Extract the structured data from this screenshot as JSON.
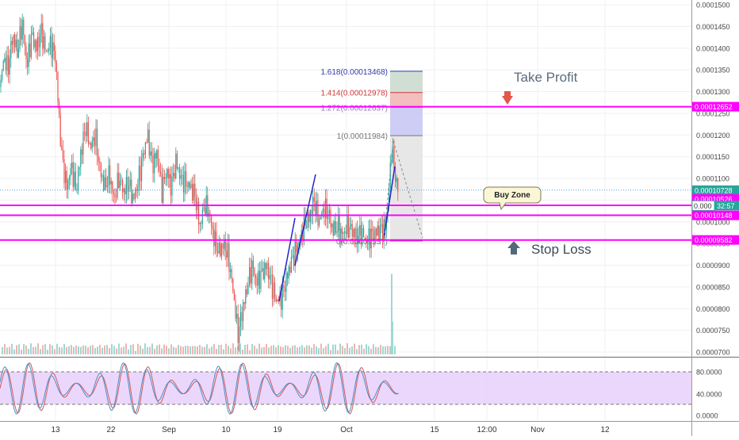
{
  "chart_data": [
    {
      "type": "candlestick",
      "ylim": [
        6.8e-05,
        0.000151
      ],
      "y_ticks": [
        "0.0000700",
        "0.0000750",
        "0.0000800",
        "0.0000850",
        "0.0000900",
        "0.0000950",
        "0.0001000",
        "0.0001050",
        "0.0001100",
        "0.0001150",
        "0.0001200",
        "0.0001250",
        "0.0001300",
        "0.0001350",
        "0.0001400",
        "0.0001450",
        "0.0001500"
      ],
      "x_ticks": [
        "13",
        "22",
        "Sep",
        "10",
        "19",
        "Oct",
        "15",
        "12:00",
        "Nov",
        "12"
      ],
      "grid": true,
      "price_path": [
        [
          0,
          0.000131
        ],
        [
          5,
          0.000138
        ],
        [
          10,
          0.000135
        ],
        [
          16,
          0.000143
        ],
        [
          22,
          0.000139
        ],
        [
          28,
          0.000146
        ],
        [
          34,
          0.000136
        ],
        [
          40,
          0.000143
        ],
        [
          46,
          0.00014
        ],
        [
          52,
          0.000144
        ],
        [
          58,
          0.000139
        ],
        [
          64,
          0.000141
        ],
        [
          70,
          0.000138
        ],
        [
          74,
          0.000125
        ],
        [
          78,
          0.000115
        ],
        [
          84,
          0.000108
        ],
        [
          90,
          0.000113
        ],
        [
          96,
          0.000107
        ],
        [
          102,
          0.000116
        ],
        [
          108,
          0.000122
        ],
        [
          114,
          0.000117
        ],
        [
          120,
          0.00012
        ],
        [
          126,
          0.000112
        ],
        [
          132,
          0.000108
        ],
        [
          138,
          0.000111
        ],
        [
          144,
          0.000105
        ],
        [
          150,
          0.00011
        ],
        [
          156,
          0.000107
        ],
        [
          162,
          0.000109
        ],
        [
          168,
          0.000105
        ],
        [
          174,
          0.000109
        ],
        [
          180,
          0.000115
        ],
        [
          186,
          0.00012
        ],
        [
          192,
          0.000113
        ],
        [
          198,
          0.000116
        ],
        [
          204,
          0.000107
        ],
        [
          210,
          0.000112
        ],
        [
          216,
          0.000108
        ],
        [
          222,
          0.000114
        ],
        [
          228,
          0.00011
        ],
        [
          234,
          0.000109
        ],
        [
          240,
          0.000108
        ],
        [
          246,
          0.000106
        ],
        [
          252,
          9.9e-05
        ],
        [
          258,
          0.000104
        ],
        [
          264,
          0.000102
        ],
        [
          270,
          9.6e-05
        ],
        [
          276,
          9.3e-05
        ],
        [
          282,
          9.5e-05
        ],
        [
          288,
          9.2e-05
        ],
        [
          294,
          8.4e-05
        ],
        [
          300,
          7.4e-05
        ],
        [
          306,
          8e-05
        ],
        [
          312,
          8.5e-05
        ],
        [
          318,
          9e-05
        ],
        [
          324,
          8.6e-05
        ],
        [
          330,
          8.8e-05
        ],
        [
          336,
          9e-05
        ],
        [
          342,
          8.6e-05
        ],
        [
          348,
          8.2e-05
        ],
        [
          354,
          8.2e-05
        ],
        [
          360,
          8.6e-05
        ],
        [
          366,
          9e-05
        ],
        [
          372,
          9.3e-05
        ],
        [
          378,
          9.6e-05
        ],
        [
          384,
          9.9e-05
        ],
        [
          390,
          0.000101
        ],
        [
          396,
          0.000105
        ],
        [
          402,
          0.0001
        ],
        [
          408,
          0.000103
        ],
        [
          414,
          0.000102
        ],
        [
          420,
          9.8e-05
        ],
        [
          426,
          9.9e-05
        ],
        [
          432,
          9.7e-05
        ],
        [
          438,
          9.9e-05
        ],
        [
          444,
          9.8e-05
        ],
        [
          450,
          9.65e-05
        ],
        [
          456,
          9.75e-05
        ],
        [
          462,
          9.55e-05
        ],
        [
          468,
          9.7e-05
        ],
        [
          474,
          9.75e-05
        ],
        [
          480,
          9.8e-05
        ],
        [
          486,
          9.9e-05
        ],
        [
          490,
          0.000106
        ],
        [
          494,
          0.000117
        ],
        [
          498,
          0.000111
        ],
        [
          502,
          0.0001073
        ]
      ],
      "volume_peaks": [
        [
          493,
          8.8e-05
        ],
        [
          494,
          7.7e-05
        ]
      ],
      "horizontal_levels": [
        {
          "price": 0.0001265,
          "color": "#ff00ff"
        },
        {
          "price": 0.0001038,
          "color": "#ff00ff"
        },
        {
          "price": 0.0001015,
          "color": "#ff00ff"
        },
        {
          "price": 9.58e-05,
          "color": "#ff00ff"
        },
        {
          "price": 0.0001073,
          "color": "#4aa3df",
          "dotted": true
        }
      ],
      "fibonacci": [
        {
          "label": "1.618(0.00013468)",
          "price": 0.00013468,
          "color": "#2f3da8"
        },
        {
          "label": "1.414(0.00012978)",
          "price": 0.00012978,
          "color": "#d23a3a"
        },
        {
          "label": "1.272(0.00012637)",
          "price": 0.00012637,
          "color": "#9b6fc9"
        },
        {
          "label": "1(0.00011984)",
          "price": 0.00011984,
          "color": "#777777"
        },
        {
          "label": "0(0.00009557)",
          "price": 9.557e-05,
          "color": "#777777"
        }
      ],
      "axis_price_labels": [
        {
          "text": "0.00012652",
          "price": 0.00012652,
          "color": "#ff00ff"
        },
        {
          "text": "0.00010728",
          "price": 0.00010728,
          "color": "#26a69a"
        },
        {
          "text": "0.00010526",
          "price": 0.00010526,
          "color": "#ff00ff"
        },
        {
          "text": "0.00010148",
          "price": 0.00010148,
          "color": "#ff00ff"
        },
        {
          "text": "0.00009582",
          "price": 9.582e-05,
          "color": "#ff00ff"
        }
      ],
      "countdown_label": {
        "prefix": "0.000",
        "time": "32:57",
        "price": 0.0001041
      },
      "annotations": {
        "take_profit": "Take Profit",
        "stop_loss": "Stop Loss",
        "buy_zone": "Buy Zone"
      }
    },
    {
      "type": "line",
      "indicator": "stochastic",
      "ylim": [
        0,
        100
      ],
      "y_ticks": [
        "80.0000",
        "40.0000",
        "0.0000"
      ],
      "band": [
        20,
        80
      ],
      "band_color": "#e6cdfa",
      "series": [
        {
          "color": "#d05a5a"
        },
        {
          "color": "#4a90c8"
        }
      ]
    }
  ]
}
